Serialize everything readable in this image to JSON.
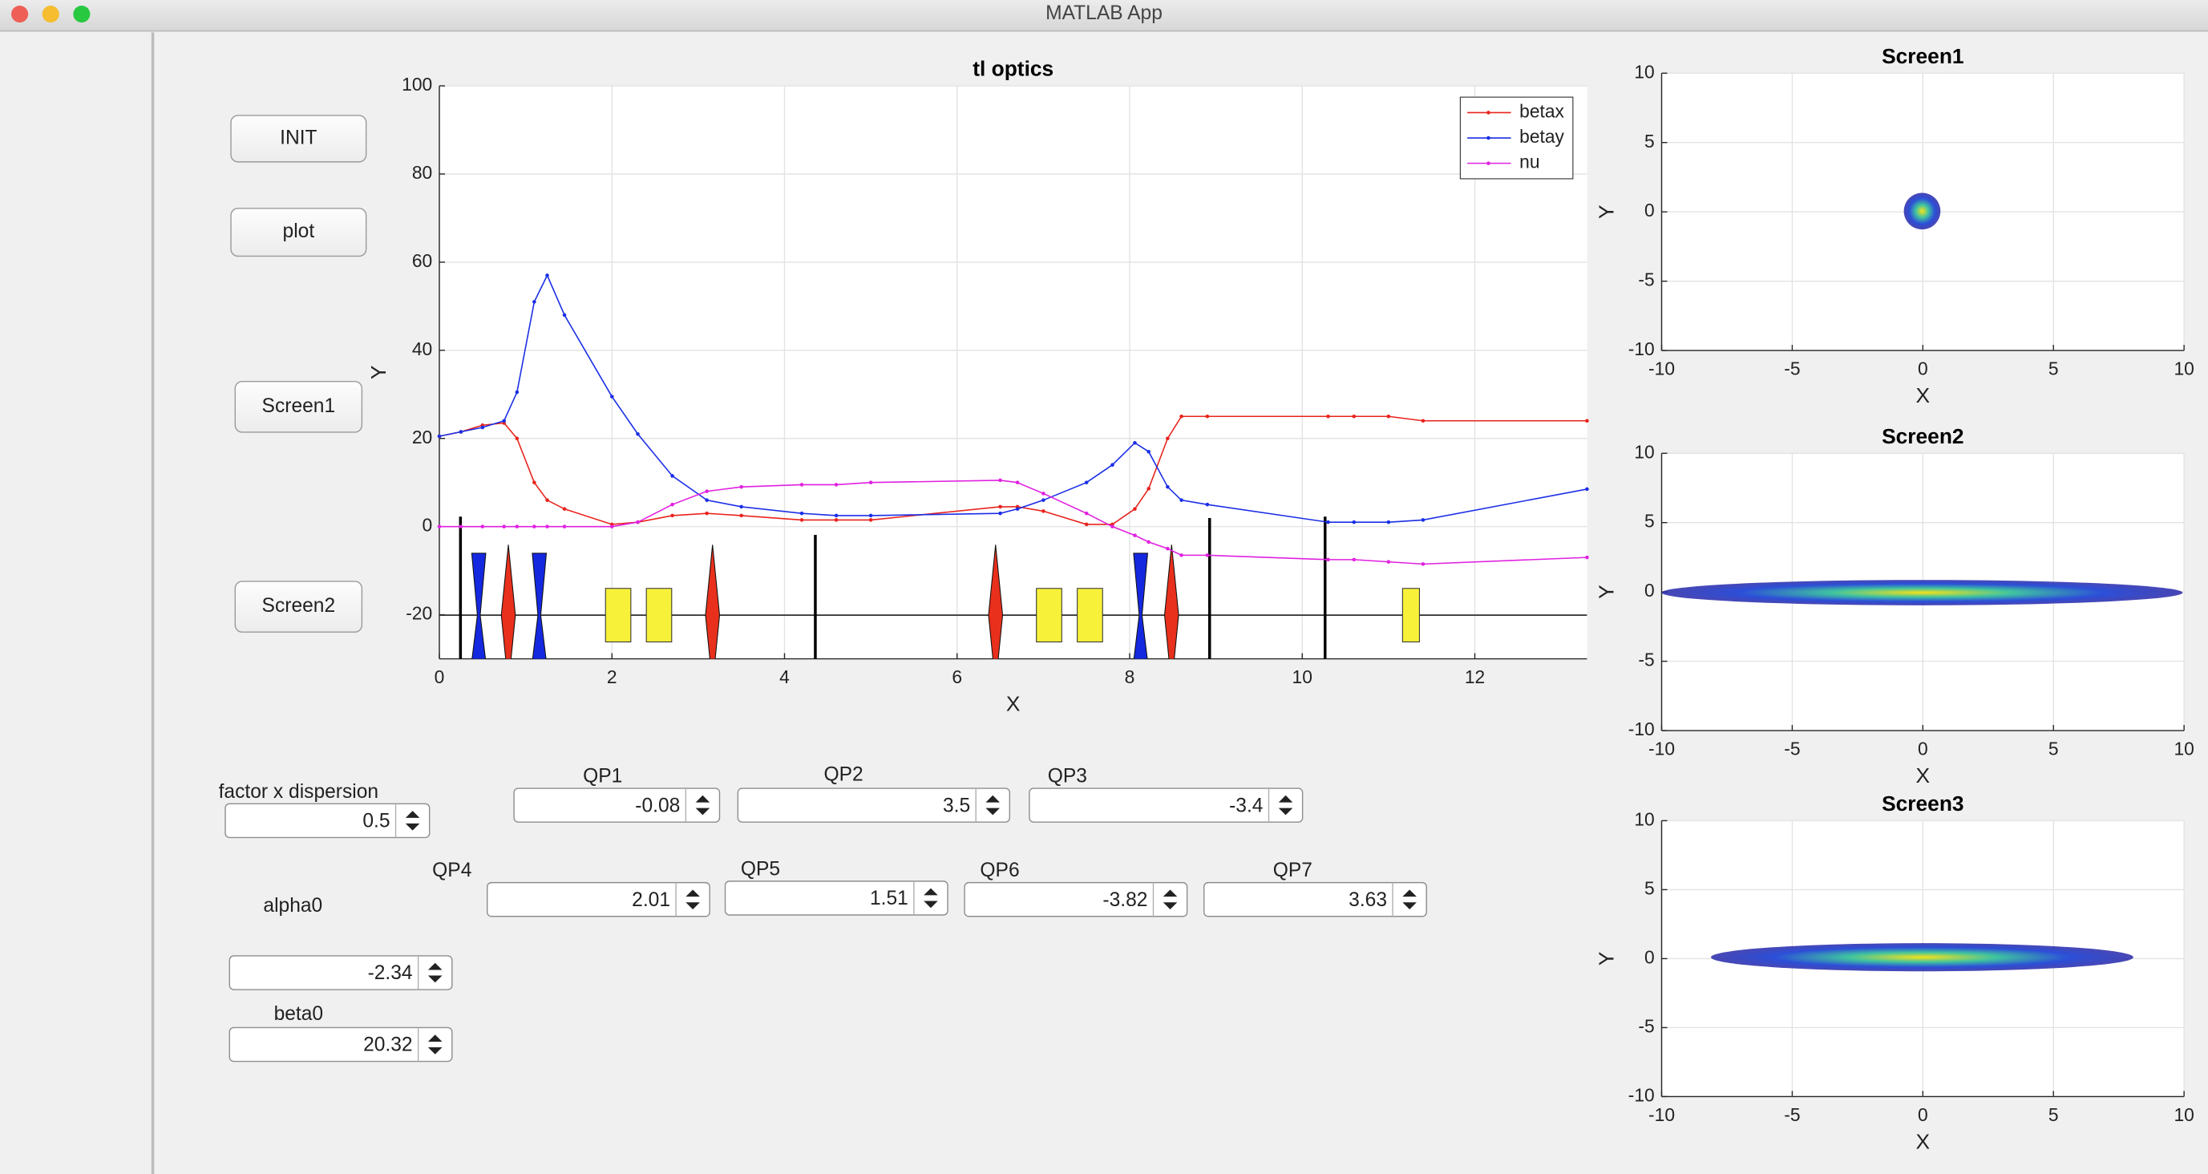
{
  "window": {
    "title": "MATLAB App"
  },
  "buttons": [
    "INIT",
    "plot",
    "Screen1",
    "Screen2"
  ],
  "fields": [
    {
      "label": "factor x dispersion",
      "value": 0.5
    },
    {
      "label": "QP1",
      "value": -0.08
    },
    {
      "label": "QP2",
      "value": 3.5
    },
    {
      "label": "QP3",
      "value": -3.4
    },
    {
      "label": "QP4",
      "value": 2.01
    },
    {
      "label": "QP5",
      "value": 1.51
    },
    {
      "label": "QP6",
      "value": -3.82
    },
    {
      "label": "QP7",
      "value": 3.63
    },
    {
      "label": "alpha0",
      "value": -2.34
    },
    {
      "label": "beta0",
      "value": 20.32
    }
  ],
  "chart_data": [
    {
      "type": "line",
      "title": "tl optics",
      "xlabel": "X",
      "ylabel": "Y",
      "x": [
        0,
        0.25,
        0.5,
        0.75,
        0.9,
        1.1,
        1.25,
        1.45,
        2.0,
        2.3,
        2.7,
        3.1,
        3.5,
        4.2,
        4.6,
        5.0,
        6.5,
        6.7,
        7.0,
        7.5,
        7.8,
        8.06,
        8.22,
        8.44,
        8.6,
        8.9,
        10.3,
        10.6,
        11.0,
        11.4,
        13.3
      ],
      "series": [
        {
          "name": "betax",
          "color": "#e8231c",
          "values": [
            20.5,
            21.5,
            23,
            23.5,
            20,
            10,
            6,
            4,
            0.5,
            1,
            2.5,
            3,
            2.5,
            1.5,
            1.5,
            1.5,
            4.5,
            4.5,
            3.5,
            0.5,
            0.5,
            4,
            8.6,
            20,
            25,
            25,
            25,
            25,
            25,
            24,
            24
          ]
        },
        {
          "name": "betay",
          "color": "#1a2ee6",
          "values": [
            20.5,
            21.5,
            22.5,
            24,
            30.5,
            51,
            57,
            48,
            29.5,
            21,
            11.5,
            6,
            4.5,
            3,
            2.5,
            2.5,
            3,
            4,
            6,
            10,
            14,
            19,
            17,
            9,
            6,
            5,
            1,
            1,
            1,
            1.5,
            8.5
          ]
        },
        {
          "name": "nu",
          "color": "#e020e0",
          "values": [
            0,
            0,
            0,
            0,
            0,
            0,
            0,
            0,
            0,
            1,
            5,
            8,
            9,
            9.5,
            9.5,
            10,
            10.5,
            10,
            7.5,
            3,
            0,
            -2,
            -3.5,
            -5,
            -6.5,
            -6.5,
            -7.5,
            -7.5,
            -8,
            -8.5,
            -7
          ]
        }
      ],
      "xlim": [
        0,
        13.3
      ],
      "ylim": [
        -30,
        100
      ],
      "xticks": [
        0,
        2,
        4,
        6,
        8,
        10,
        12
      ],
      "yticks": [
        -20,
        0,
        20,
        40,
        60,
        80,
        100
      ],
      "grid": true,
      "legend": "upper-right"
    },
    {
      "type": "heatmap",
      "title": "Screen1",
      "xlabel": "X",
      "ylabel": "Y",
      "xlim": [
        -10,
        10
      ],
      "ylim": [
        -10,
        10
      ],
      "xticks": [
        -10,
        -5,
        0,
        5,
        10
      ],
      "yticks": [
        -10,
        -5,
        0,
        5,
        10
      ],
      "grid": true
    },
    {
      "type": "heatmap",
      "title": "Screen2",
      "xlabel": "X",
      "ylabel": "Y",
      "xlim": [
        -10,
        10
      ],
      "ylim": [
        -10,
        10
      ],
      "xticks": [
        -10,
        -5,
        0,
        5,
        10
      ],
      "yticks": [
        -10,
        -5,
        0,
        5,
        10
      ],
      "grid": true
    },
    {
      "type": "heatmap",
      "title": "Screen3",
      "xlabel": "X",
      "ylabel": "Y",
      "xlim": [
        -10,
        10
      ],
      "ylim": [
        -10,
        10
      ],
      "xticks": [
        -10,
        -5,
        0,
        5,
        10
      ],
      "yticks": [
        -10,
        -5,
        0,
        5,
        10
      ],
      "grid": true
    }
  ]
}
